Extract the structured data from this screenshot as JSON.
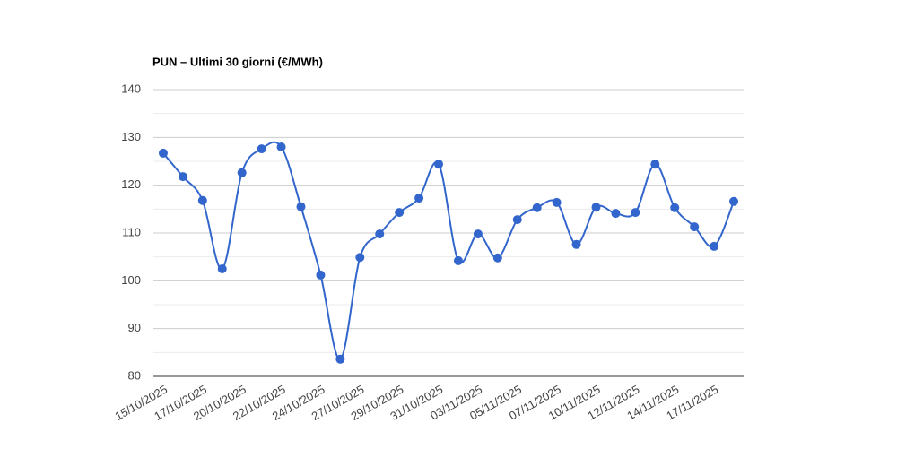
{
  "chart_data": {
    "type": "line",
    "title": "PUN – Ultimi 30 giorni (€/MWh)",
    "categories": [
      "15/10/2025",
      null,
      "17/10/2025",
      null,
      "20/10/2025",
      null,
      "22/10/2025",
      null,
      "24/10/2025",
      null,
      "27/10/2025",
      null,
      "29/10/2025",
      null,
      "31/10/2025",
      null,
      "03/11/2025",
      null,
      "05/11/2025",
      null,
      "07/11/2025",
      null,
      "10/11/2025",
      null,
      "12/11/2025",
      null,
      "14/11/2025",
      null,
      "17/11/2025",
      null
    ],
    "series": [
      {
        "name": "PUN",
        "color": "#3366cc",
        "values": [
          126.7,
          121.8,
          116.8,
          102.5,
          122.6,
          127.6,
          128.0,
          115.5,
          101.2,
          83.6,
          104.9,
          109.8,
          114.3,
          117.3,
          124.4,
          104.2,
          109.8,
          104.8,
          112.8,
          115.3,
          116.4,
          107.6,
          115.4,
          114.1,
          114.3,
          124.4,
          115.3,
          111.3,
          107.2,
          116.6
        ]
      }
    ],
    "ylim": [
      80,
      140
    ],
    "yticks": [
      80,
      90,
      100,
      110,
      120,
      130,
      140
    ],
    "minor_yticks": [
      85,
      95,
      105,
      115,
      125,
      135
    ],
    "grid": true,
    "smooth": true
  }
}
